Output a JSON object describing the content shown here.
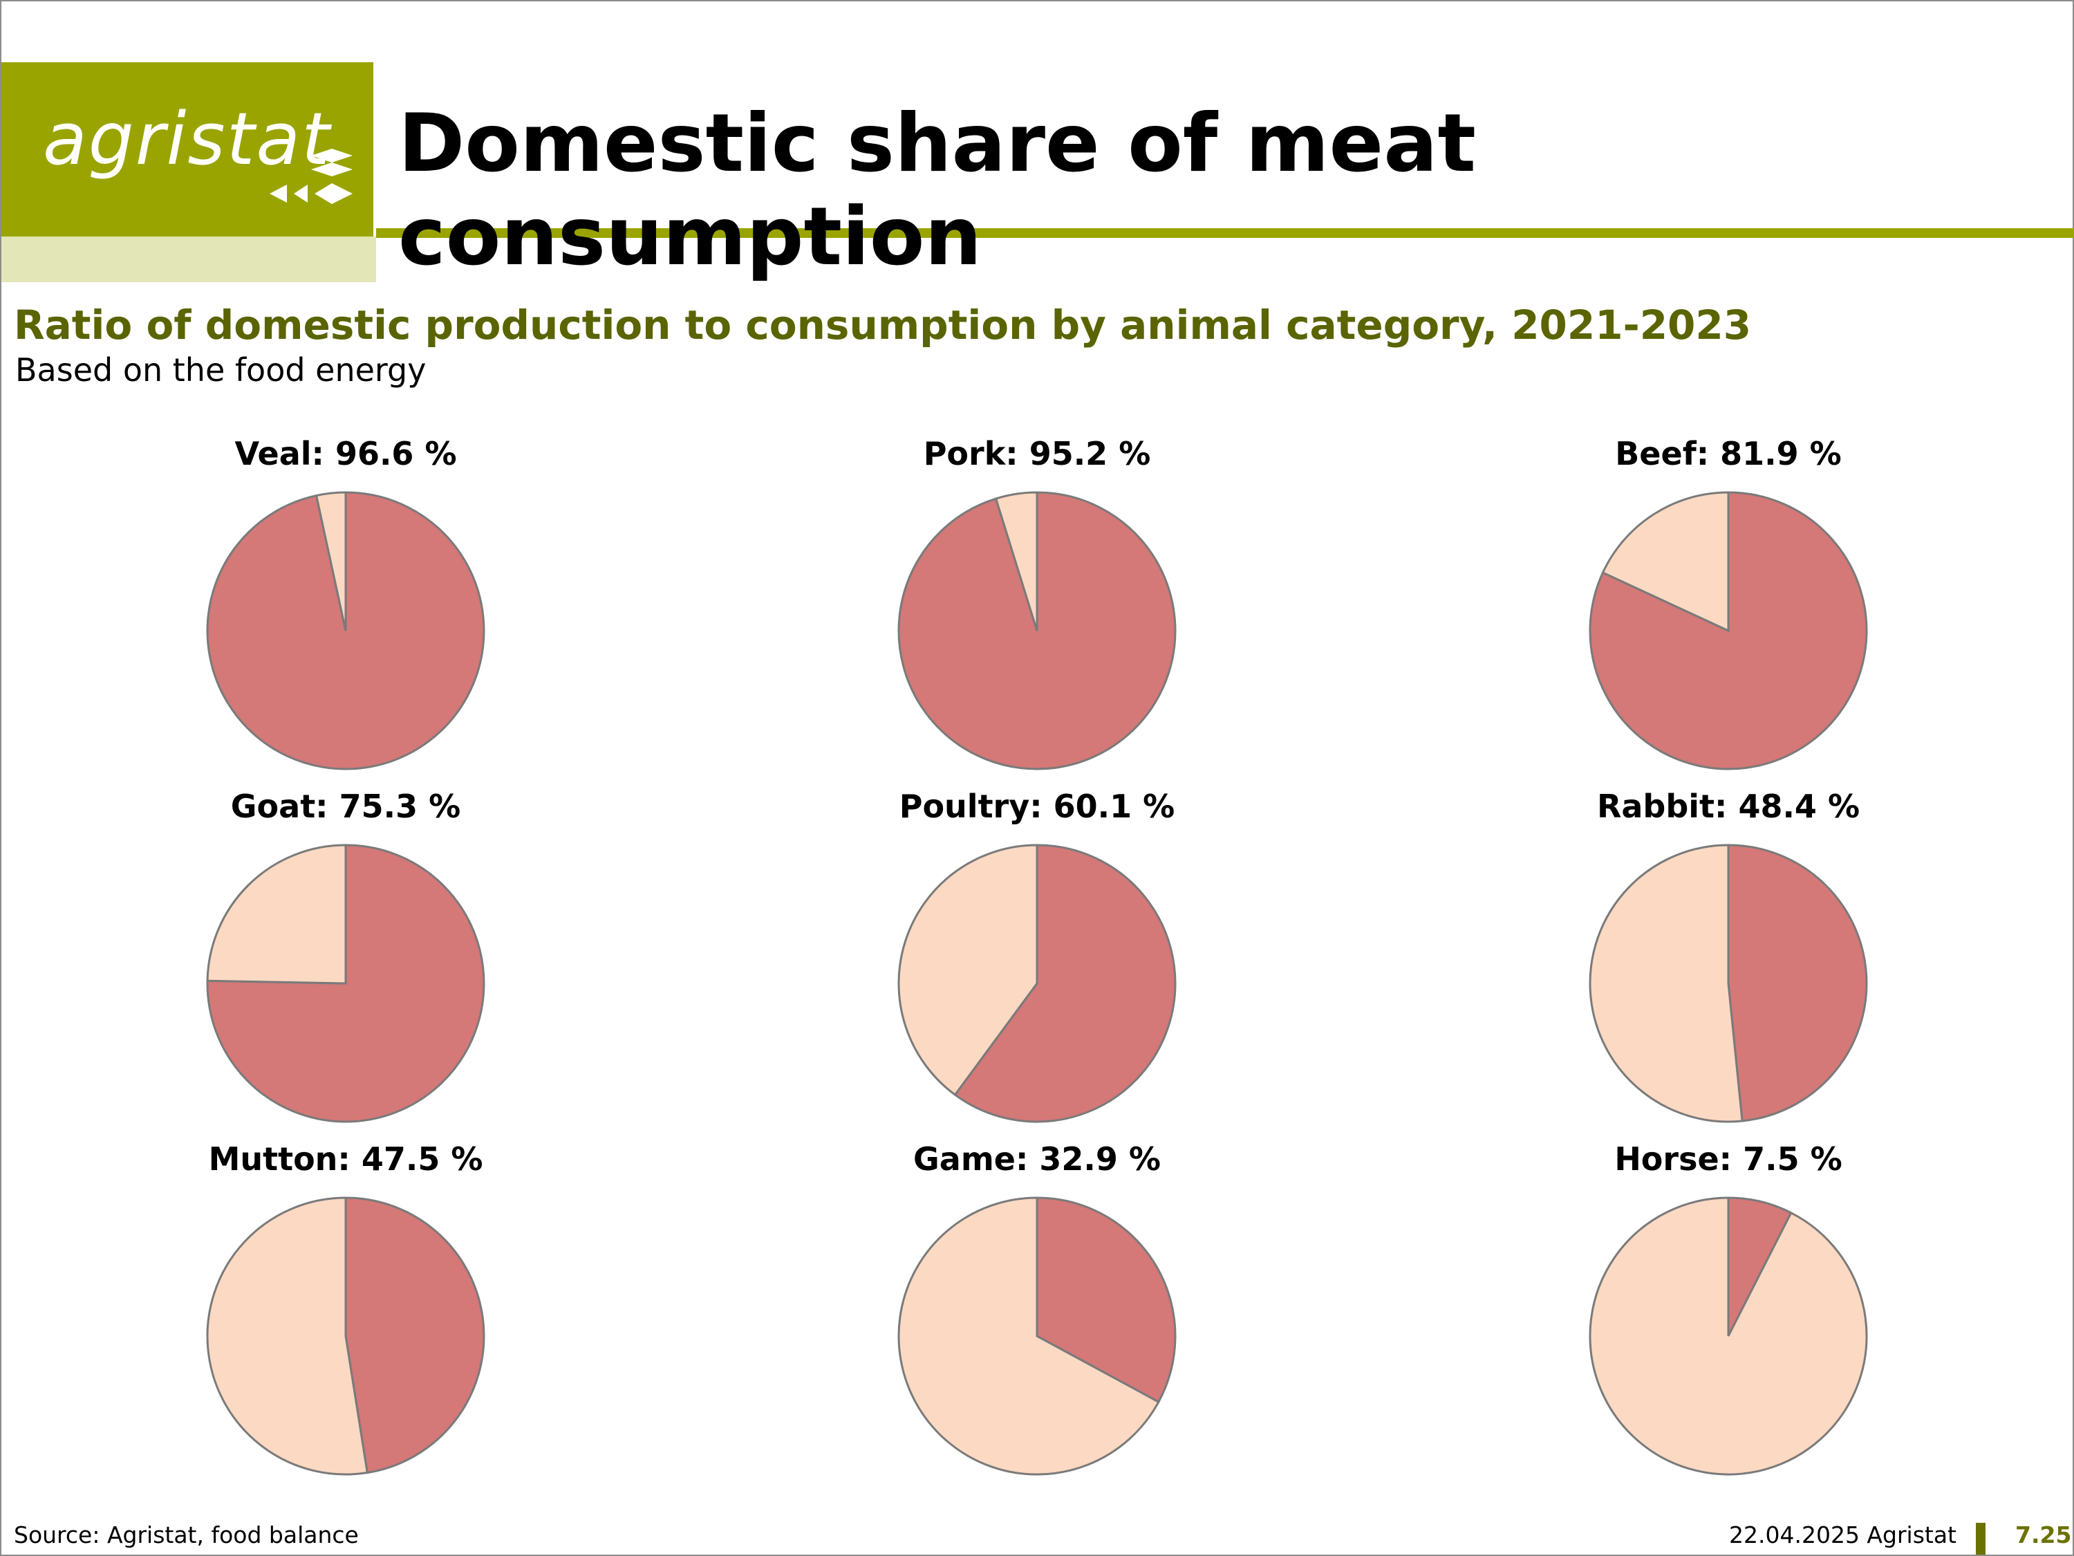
{
  "header": {
    "logo_text": "agristat",
    "title": "Domestic share of meat consumption",
    "brand_color": "#9aa400"
  },
  "chart_data": {
    "type": "pie",
    "title": "Ratio of domestic production to consumption by animal category, 2021-2023",
    "subtitle": "Based on the food energy",
    "colors": {
      "domestic": "#d47878",
      "rest": "#fcd9c2",
      "outline": "#7a7a7a"
    },
    "charts": [
      {
        "label": "Veal: 96.6 %",
        "value": 96.6
      },
      {
        "label": "Pork: 95.2 %",
        "value": 95.2
      },
      {
        "label": "Beef: 81.9 %",
        "value": 81.9
      },
      {
        "label": "Goat: 75.3 %",
        "value": 75.3
      },
      {
        "label": "Poultry: 60.1 %",
        "value": 60.1
      },
      {
        "label": "Rabbit: 48.4 %",
        "value": 48.4
      },
      {
        "label": "Mutton: 47.5 %",
        "value": 47.5
      },
      {
        "label": "Game: 32.9 %",
        "value": 32.9
      },
      {
        "label": "Horse:  7.5 %",
        "value": 7.5
      }
    ]
  },
  "footer": {
    "source": "Source: Agristat, food balance",
    "date": "22.04.2025 Agristat",
    "page": "7.25"
  }
}
